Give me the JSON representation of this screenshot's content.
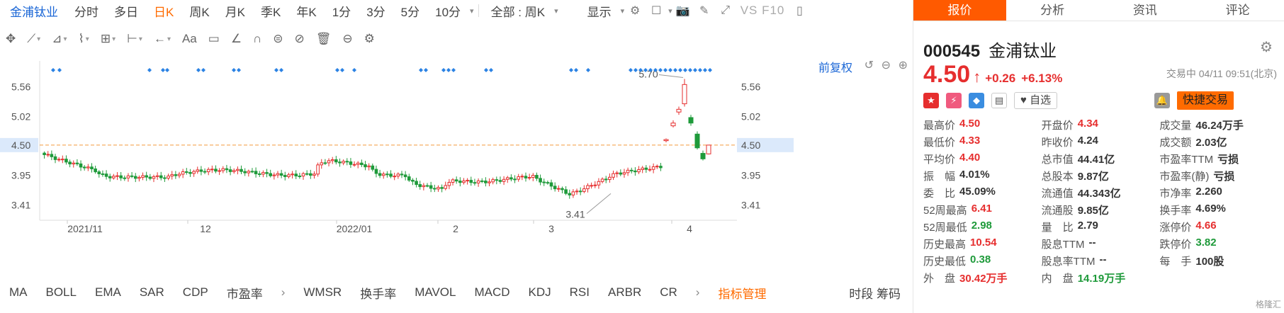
{
  "toolbar": {
    "stock": "金浦钛业",
    "periods": [
      "分时",
      "多日",
      "日K",
      "周K",
      "月K",
      "季K",
      "年K",
      "1分",
      "3分",
      "5分",
      "10分"
    ],
    "active_period": "日K",
    "range": "全部 : 周K",
    "display": "显示",
    "vs": "VS F10"
  },
  "draw_tools": {
    "text_tool": "Aa"
  },
  "chart": {
    "adjust": "前复权",
    "y_ticks": [
      "5.56",
      "5.02",
      "4.50",
      "3.95",
      "3.41"
    ],
    "y_values": [
      5.56,
      5.02,
      4.5,
      3.95,
      3.41
    ],
    "x_labels": [
      "2021/11",
      "12",
      "2022/01",
      "2",
      "3",
      "4"
    ],
    "high_label": "5.70",
    "low_label": "3.41",
    "current": 4.5
  },
  "chart_data": {
    "type": "candlestick",
    "current_price": 4.5,
    "high": 5.7,
    "low": 3.41,
    "ylim": [
      3.2,
      5.9
    ]
  },
  "indicators": {
    "items": [
      "MA",
      "BOLL",
      "EMA",
      "SAR",
      "CDP",
      "市盈率",
      "WMSR",
      "换手率",
      "MAVOL",
      "MACD",
      "KDJ",
      "RSI",
      "ARBR",
      "CR"
    ],
    "manage": "指标管理",
    "right": "时段 筹码"
  },
  "panel": {
    "tabs": [
      "报价",
      "分析",
      "资讯",
      "评论"
    ],
    "code": "000545",
    "name": "金浦钛业",
    "price": "4.50",
    "change": "+0.26",
    "pct": "+6.13%",
    "status": "交易中 04/11 09:51(北京)",
    "watch": "自选",
    "trade": "快捷交易",
    "rows": [
      [
        [
          "最高价",
          "4.50",
          "r"
        ],
        [
          "开盘价",
          "4.34",
          "r"
        ],
        [
          "成交量",
          "46.24万手",
          ""
        ]
      ],
      [
        [
          "最低价",
          "4.33",
          "r"
        ],
        [
          "昨收价",
          "4.24",
          ""
        ],
        [
          "成交额",
          "2.03亿",
          ""
        ]
      ],
      [
        [
          "平均价",
          "4.40",
          "r"
        ],
        [
          "总市值",
          "44.41亿",
          ""
        ],
        [
          "市盈率TTM",
          "亏损",
          ""
        ]
      ],
      [
        [
          "振　幅",
          "4.01%",
          ""
        ],
        [
          "总股本",
          "9.87亿",
          ""
        ],
        [
          "市盈率(静)",
          "亏损",
          ""
        ]
      ],
      [
        [
          "委　比",
          "45.09%",
          ""
        ],
        [
          "流通值",
          "44.343亿",
          ""
        ],
        [
          "市净率",
          "2.260",
          ""
        ]
      ],
      [
        [
          "52周最高",
          "6.41",
          "r"
        ],
        [
          "流通股",
          "9.85亿",
          ""
        ],
        [
          "换手率",
          "4.69%",
          ""
        ]
      ],
      [
        [
          "52周最低",
          "2.98",
          "g"
        ],
        [
          "量　比",
          "2.79",
          ""
        ],
        [
          "涨停价",
          "4.66",
          "r"
        ]
      ],
      [
        [
          "历史最高",
          "10.54",
          "r"
        ],
        [
          "股息TTM",
          "--",
          ""
        ],
        [
          "跌停价",
          "3.82",
          "g"
        ]
      ],
      [
        [
          "历史最低",
          "0.38",
          "g"
        ],
        [
          "股息率TTM",
          "--",
          ""
        ],
        [
          "每　手",
          "100股",
          ""
        ]
      ],
      [
        [
          "外　盘",
          "30.42万手",
          "r"
        ],
        [
          "内　盘",
          "14.19万手",
          "g"
        ],
        [
          "",
          "",
          ""
        ]
      ]
    ],
    "logo": "格隆汇"
  }
}
